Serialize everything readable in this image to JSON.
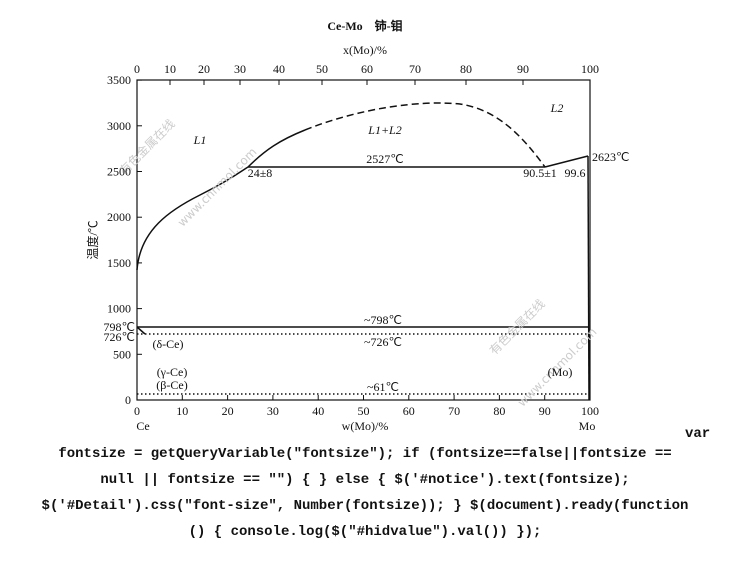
{
  "diagram": {
    "title": "Ce-Mo　铈-钼",
    "top_axis_label": "x(Mo)/%",
    "bottom_axis_label": "w(Mo)/%",
    "y_axis_label": "温度/℃",
    "top_ticks": [
      "0",
      "10",
      "20",
      "30",
      "40",
      "50",
      "60",
      "70",
      "80",
      "90",
      "100"
    ],
    "bottom_ticks": [
      "0",
      "10",
      "20",
      "30",
      "40",
      "50",
      "60",
      "70",
      "80",
      "90",
      "100"
    ],
    "y_ticks": [
      "0",
      "500",
      "1000",
      "1500",
      "2000",
      "2500",
      "3000",
      "3500"
    ],
    "y_extra_labels": [
      "798℃",
      "726℃"
    ],
    "end_labels": [
      "Ce",
      "Mo"
    ],
    "annotations": [
      "L1",
      "L1+L2",
      "L2",
      "2527℃",
      "24±8",
      "90.5±1",
      "99.6",
      "2623℃",
      "~798℃",
      "~726℃",
      "(δ-Ce)",
      "(γ-Ce)",
      "(β-Ce)",
      "~61℃",
      "(Mo)"
    ],
    "watermarks": [
      "有色金属在线",
      "www.cnnmol.com",
      "有色金属在线",
      "www.cnnmol.com"
    ]
  },
  "code": {
    "lines": [
      "var",
      "fontsize = getQueryVariable(\"fontsize\"); if (fontsize==false||fontsize ==",
      "null || fontsize == \"\") { } else { $('#notice').text(fontsize);",
      "$('#Detail').css(\"font-size\", Number(fontsize)); } $(document).ready(function",
      "() { console.log($(\"#hidvalue\").val()) });"
    ]
  }
}
